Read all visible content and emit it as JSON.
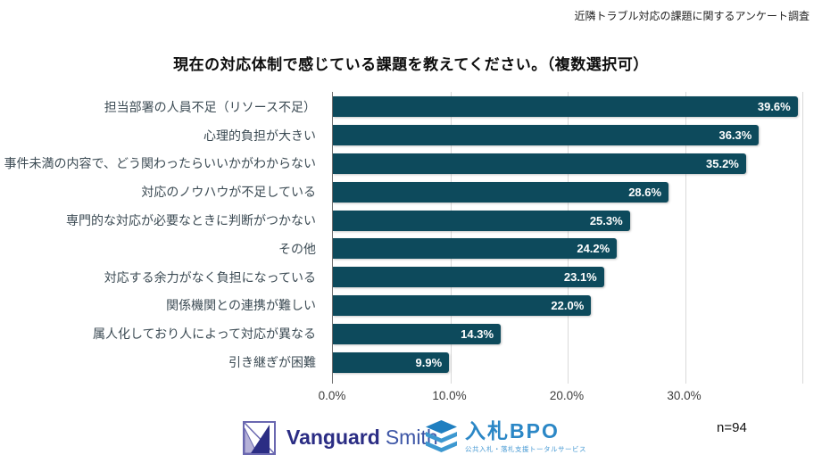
{
  "header": {
    "note": "近隣トラブル対応の課題に関するアンケート調査"
  },
  "title": "現在の対応体制で感じている課題を教えてください。（複数選択可）",
  "chart_data": {
    "type": "bar",
    "orientation": "horizontal",
    "title": "現在の対応体制で感じている課題を教えてください。（複数選択可）",
    "categories": [
      "担当部署の人員不足（リソース不足）",
      "心理的負担が大きい",
      "事件未満の内容で、どう関わったらいいかがわからない",
      "対応のノウハウが不足している",
      "専門的な対応が必要なときに判断がつかない",
      "その他",
      "対応する余力がなく負担になっている",
      "関係機関との連携が難しい",
      "属人化しており人によって対応が異なる",
      "引き継ぎが困難"
    ],
    "values": [
      39.6,
      36.3,
      35.2,
      28.6,
      25.3,
      24.2,
      23.1,
      22.0,
      14.3,
      9.9
    ],
    "value_labels": [
      "39.6%",
      "36.3%",
      "35.2%",
      "28.6%",
      "25.3%",
      "24.2%",
      "23.1%",
      "22.0%",
      "14.3%",
      "9.9%"
    ],
    "xlabel": "",
    "ylabel": "",
    "xlim": [
      0,
      40.5
    ],
    "x_ticks": [
      {
        "value": 0,
        "label": "0.0%"
      },
      {
        "value": 10,
        "label": "10.0%"
      },
      {
        "value": 20,
        "label": "20.0%"
      },
      {
        "value": 30,
        "label": "30.0%"
      }
    ],
    "grid_values": [
      10,
      20,
      30,
      40
    ],
    "grid": "vertical",
    "legend": "none",
    "bar_color": "#0d4a5c",
    "value_label_color": "#ffffff",
    "sample_size": "n=94"
  },
  "footer": {
    "vanguard_logo": {
      "name": "Vanguard",
      "suffix": "Smith"
    },
    "bpo_logo": {
      "title": "入札BPO",
      "subtitle": "公共入札・落札支援トータルサービス"
    },
    "sample_size": "n=94"
  },
  "colors": {
    "bar": "#0d4a5c",
    "gridline": "#d9d9d9",
    "axis_line": "#6f6f6f",
    "category_label": "#3c4b54",
    "vanguard_navy": "#2b2d84",
    "vanguard_lavender": "#b5b1d8",
    "bpo_blue": "#2b87c6"
  }
}
